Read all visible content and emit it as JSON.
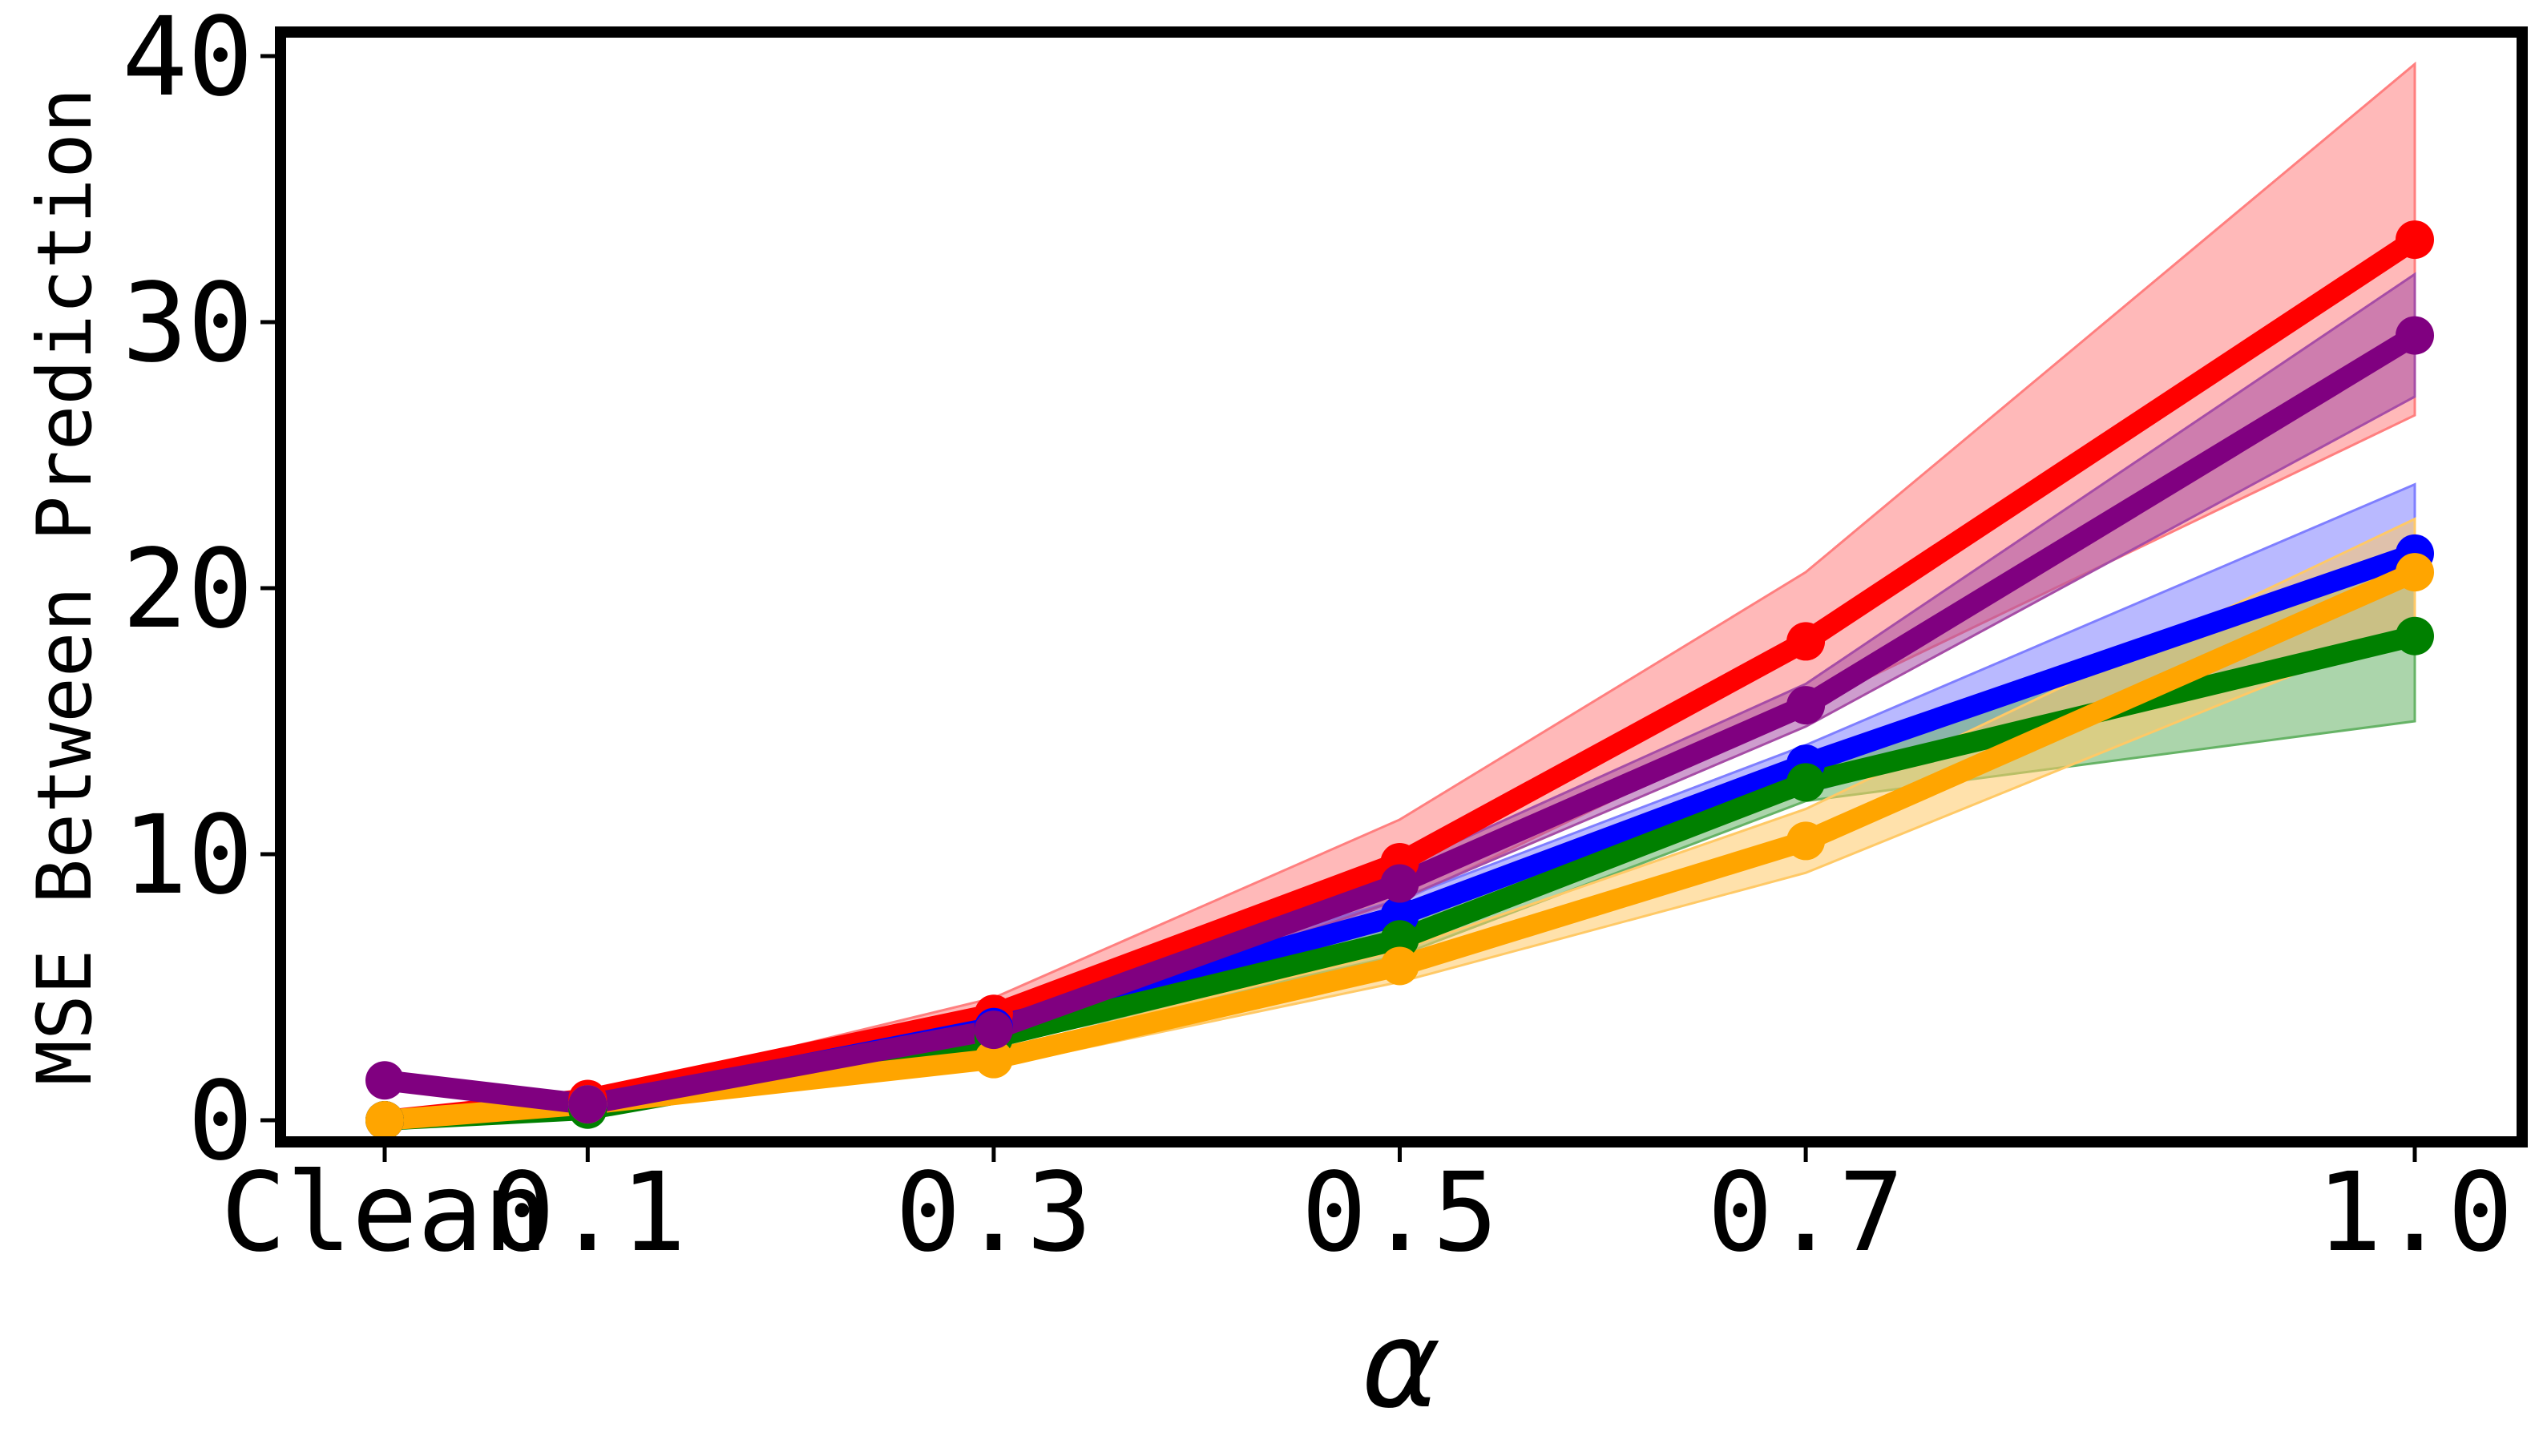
{
  "chart_data": {
    "type": "line",
    "xlabel": "α",
    "ylabel": "MSE Between Prediction",
    "categories": [
      "Clean",
      "0.1",
      "0.3",
      "0.5",
      "0.7",
      "1.0"
    ],
    "x": [
      0,
      0.1,
      0.3,
      0.5,
      0.7,
      1.0
    ],
    "ylim": [
      -1,
      41
    ],
    "yticks": [
      "0",
      "10",
      "20",
      "30",
      "40"
    ],
    "grid": false,
    "series": [
      {
        "color": "#ff0000",
        "values": [
          0.0,
          0.8,
          4.0,
          9.7,
          18.0,
          33.1
        ],
        "lower": [
          0.0,
          0.7,
          3.6,
          8.2,
          15.5,
          26.5
        ],
        "upper": [
          0.0,
          0.9,
          4.6,
          11.3,
          20.6,
          39.7
        ],
        "band_color": "#ff7f7f"
      },
      {
        "color": "#0000ff",
        "values": [
          0.0,
          0.5,
          3.5,
          7.7,
          13.4,
          21.3
        ],
        "lower": [
          0.0,
          0.45,
          3.2,
          7.1,
          12.3,
          18.6
        ],
        "upper": [
          0.0,
          0.55,
          3.8,
          8.3,
          14.1,
          23.9
        ],
        "band_color": "#7f7fff"
      },
      {
        "color": "#008000",
        "values": [
          0.0,
          0.4,
          3.1,
          6.8,
          12.7,
          18.2
        ],
        "lower": [
          0.0,
          0.35,
          2.8,
          6.2,
          12.0,
          15.0
        ],
        "upper": [
          0.0,
          0.45,
          3.4,
          7.4,
          13.4,
          21.5
        ],
        "band_color": "#66b366"
      },
      {
        "color": "#ffa500",
        "values": [
          0.0,
          0.6,
          2.3,
          5.8,
          10.5,
          20.6
        ],
        "lower": [
          0.0,
          0.5,
          2.0,
          5.2,
          9.3,
          18.6
        ],
        "upper": [
          0.0,
          0.7,
          2.6,
          6.4,
          11.7,
          22.6
        ],
        "band_color": "#ffc966"
      },
      {
        "color": "#800080",
        "values": [
          1.5,
          0.6,
          3.4,
          8.9,
          15.6,
          29.5
        ],
        "lower": [
          1.5,
          0.55,
          3.1,
          8.3,
          14.8,
          27.2
        ],
        "upper": [
          1.5,
          0.65,
          3.7,
          9.5,
          16.4,
          31.8
        ],
        "band_color": "#a64da6"
      }
    ]
  }
}
